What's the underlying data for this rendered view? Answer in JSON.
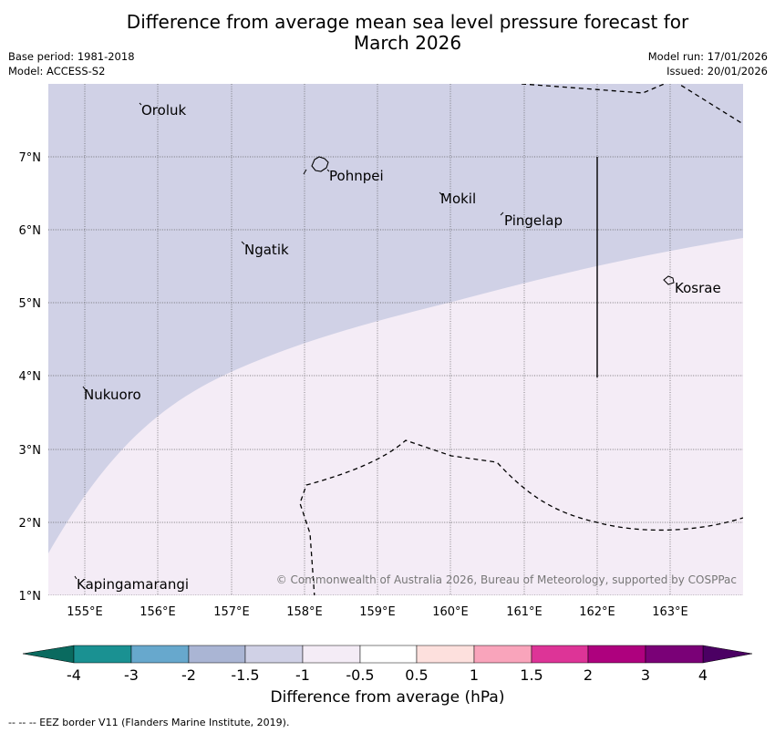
{
  "title_line1": "Difference from average mean sea level pressure forecast for",
  "title_line2": "March 2026",
  "meta": {
    "base_period": "Base period: 1981-2018",
    "model": "Model: ACCESS-S2",
    "model_run": "Model run: 17/01/2026",
    "issued": "Issued: 20/01/2026"
  },
  "map": {
    "lat_labels": [
      "7°N",
      "6°N",
      "5°N",
      "4°N",
      "3°N",
      "2°N",
      "1°N"
    ],
    "lon_labels": [
      "155°E",
      "156°E",
      "157°E",
      "158°E",
      "159°E",
      "160°E",
      "161°E",
      "162°E",
      "163°E"
    ],
    "places": [
      "Oroluk",
      "Pohnpei",
      "Mokil",
      "Pingelap",
      "Ngatik",
      "Kosrae",
      "Nukuoro",
      "Kapingamarangi"
    ],
    "copyright": "© Commonwealth of Australia 2026, Bureau of Meteorology, supported by COSPPac",
    "colors": {
      "band_neg_1_5_to_neg_1": "#d0d1e6",
      "band_neg_1_to_neg_0_5": "#f4ecf6"
    }
  },
  "colorbar": {
    "ticks": [
      "-4",
      "-3",
      "-2",
      "-1.5",
      "-1",
      "-0.5",
      "0.5",
      "1",
      "1.5",
      "2",
      "3",
      "4"
    ],
    "colors": [
      "#1a9192",
      "#67a8cd",
      "#aab5d4",
      "#d0d1e6",
      "#f4ecf6",
      "#ffffff",
      "#fde0dd",
      "#f9a4bb",
      "#dd3497",
      "#ae017e",
      "#7a0177"
    ],
    "under_color": "#0a6a5f",
    "over_color": "#4b0063",
    "label": "Difference from average (hPa)"
  },
  "footnote": "--  --  -- EEZ border V11 (Flanders Marine Institute, 2019)."
}
